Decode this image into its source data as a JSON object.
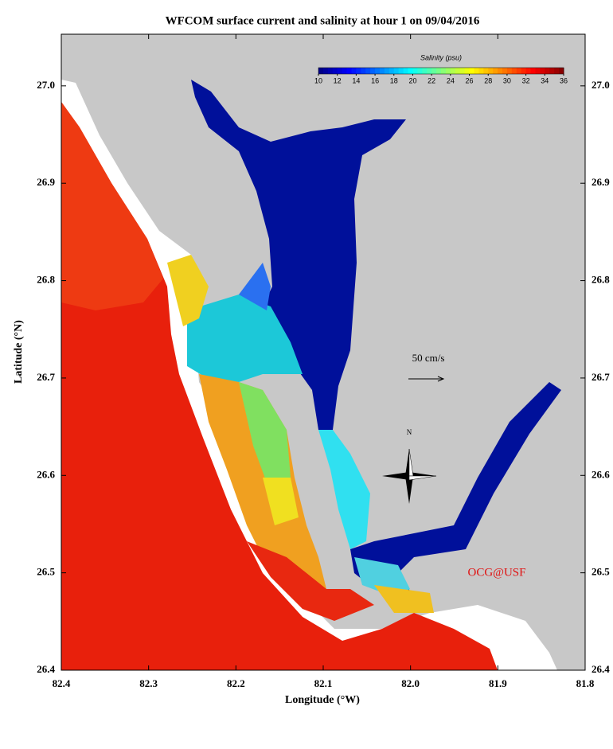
{
  "map": {
    "title": "WFCOM surface current and salinity at hour 1 on 09/04/2016",
    "x_label": "Longitude (°W)",
    "y_label": "Latitude (°N)",
    "xlim": [
      82.4,
      81.8
    ],
    "xticks": [
      82.4,
      82.3,
      82.2,
      82.1,
      {
        "value": 82,
        "label": "82.0"
      },
      81.9,
      81.8
    ],
    "ylim": [
      26.4,
      27.053
    ],
    "yticks": [
      26.4,
      26.5,
      26.6,
      26.7,
      26.8,
      26.9,
      {
        "value": 27,
        "label": "27.0"
      }
    ],
    "colorbar": {
      "label": "Salinity (psu)",
      "lim": [
        10,
        36
      ],
      "ticks": [
        10,
        12,
        14,
        16,
        18,
        20,
        22,
        24,
        26,
        28,
        30,
        32,
        34,
        36
      ]
    },
    "scale_arrow_label": "50 cm/s",
    "compass_label": "N",
    "credit": "OCG@USF"
  }
}
